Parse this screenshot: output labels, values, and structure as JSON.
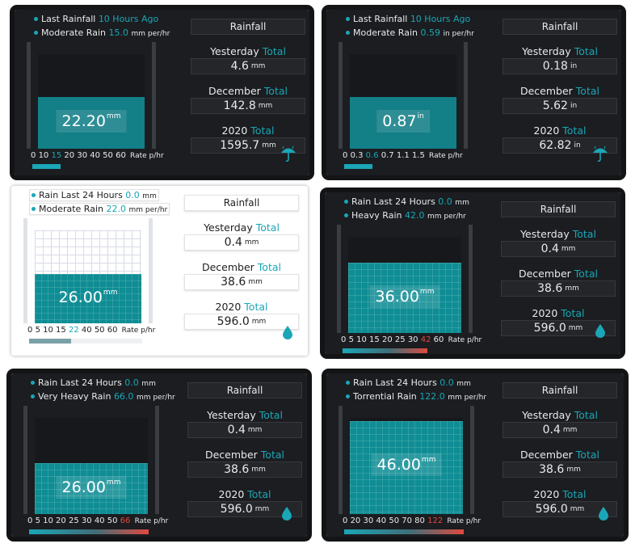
{
  "panels": [
    {
      "header": [
        {
          "pre": "Last Rainfall",
          "hl": "10 Hours Ago",
          "post": ""
        },
        {
          "pre": "Moderate Rain",
          "hl": "15.0",
          "post": "mm per/hr"
        }
      ],
      "reading_value": "22.20",
      "reading_unit": "mm",
      "scale": [
        {
          "t": "0"
        },
        {
          "t": "10"
        },
        {
          "t": "15",
          "c": "hl"
        },
        {
          "t": "20"
        },
        {
          "t": "30"
        },
        {
          "t": "40"
        },
        {
          "t": "50"
        },
        {
          "t": "60"
        }
      ],
      "rate_label": "Rate p/hr",
      "title": "Rainfall",
      "stats": [
        {
          "pre": "Yesterday",
          "post": "Total",
          "value": "4.6",
          "unit": "mm"
        },
        {
          "pre": "December",
          "post": "Total",
          "value": "142.8",
          "unit": "mm"
        },
        {
          "pre": "2020",
          "post": "Total",
          "value": "1595.7",
          "unit": "mm"
        }
      ],
      "icon": "umbrella-rain-icon",
      "fill_fraction": 0.55,
      "bar_fraction": 0.25,
      "bar_style": "teal"
    },
    {
      "header": [
        {
          "pre": "Last Rainfall",
          "hl": "10 Hours Ago",
          "post": ""
        },
        {
          "pre": "Moderate Rain",
          "hl": "0.59",
          "post": "in per/hr"
        }
      ],
      "reading_value": "0.87",
      "reading_unit": "in",
      "scale": [
        {
          "t": "0"
        },
        {
          "t": "0.3"
        },
        {
          "t": "0.6",
          "c": "hl"
        },
        {
          "t": "0.7"
        },
        {
          "t": "1.1"
        },
        {
          "t": "1.5"
        }
      ],
      "rate_label": "Rate p/hr",
      "title": "Rainfall",
      "stats": [
        {
          "pre": "Yesterday",
          "post": "Total",
          "value": "0.18",
          "unit": "in"
        },
        {
          "pre": "December",
          "post": "Total",
          "value": "5.62",
          "unit": "in"
        },
        {
          "pre": "2020",
          "post": "Total",
          "value": "62.82",
          "unit": "in"
        }
      ],
      "icon": "umbrella-rain-icon",
      "fill_fraction": 0.55,
      "bar_fraction": 0.25,
      "bar_style": "teal"
    },
    {
      "header": [
        {
          "pre": "Rain Last 24 Hours",
          "hl": "0.0",
          "post": "mm"
        },
        {
          "pre": "Moderate Rain",
          "hl": "22.0",
          "post": "mm per/hr"
        }
      ],
      "reading_value": "26.00",
      "reading_unit": "mm",
      "scale": [
        {
          "t": "0"
        },
        {
          "t": "5"
        },
        {
          "t": "10"
        },
        {
          "t": "15"
        },
        {
          "t": "22",
          "c": "hl"
        },
        {
          "t": "40"
        },
        {
          "t": "50"
        },
        {
          "t": "60"
        }
      ],
      "rate_label": "Rate p/hr",
      "title": "Rainfall",
      "stats": [
        {
          "pre": "Yesterday",
          "post": "Total",
          "value": "0.4",
          "unit": "mm"
        },
        {
          "pre": "December",
          "post": "Total",
          "value": "38.6",
          "unit": "mm"
        },
        {
          "pre": "2020",
          "post": "Total",
          "value": "596.0",
          "unit": "mm"
        }
      ],
      "icon": "water-drop-icon",
      "fill_fraction": 0.53,
      "bar_fraction": 0.37,
      "bar_style": "grey"
    },
    {
      "header": [
        {
          "pre": "Rain Last 24 Hours",
          "hl": "0.0",
          "post": "mm"
        },
        {
          "pre": "Heavy Rain",
          "hl": "42.0",
          "post": "mm per/hr"
        }
      ],
      "reading_value": "36.00",
      "reading_unit": "mm",
      "scale": [
        {
          "t": "0"
        },
        {
          "t": "5"
        },
        {
          "t": "10"
        },
        {
          "t": "15"
        },
        {
          "t": "20"
        },
        {
          "t": "25"
        },
        {
          "t": "30"
        },
        {
          "t": "42",
          "c": "red"
        },
        {
          "t": "60"
        }
      ],
      "rate_label": "Rate p/hr",
      "title": "Rainfall",
      "stats": [
        {
          "pre": "Yesterday",
          "post": "Total",
          "value": "0.4",
          "unit": "mm"
        },
        {
          "pre": "December",
          "post": "Total",
          "value": "38.6",
          "unit": "mm"
        },
        {
          "pre": "2020",
          "post": "Total",
          "value": "596.0",
          "unit": "mm"
        }
      ],
      "icon": "water-drop-icon",
      "fill_fraction": 0.73,
      "bar_fraction": 0.71,
      "bar_style": "gradient"
    },
    {
      "header": [
        {
          "pre": "Rain Last 24 Hours",
          "hl": "0.0",
          "post": "mm"
        },
        {
          "pre": "Very Heavy Rain",
          "hl": "66.0",
          "post": "mm per/hr"
        }
      ],
      "reading_value": "26.00",
      "reading_unit": "mm",
      "scale": [
        {
          "t": "0"
        },
        {
          "t": "5"
        },
        {
          "t": "10"
        },
        {
          "t": "20"
        },
        {
          "t": "25"
        },
        {
          "t": "30"
        },
        {
          "t": "40"
        },
        {
          "t": "50"
        },
        {
          "t": "66",
          "c": "red"
        }
      ],
      "rate_label": "Rate p/hr",
      "title": "Rainfall",
      "stats": [
        {
          "pre": "Yesterday",
          "post": "Total",
          "value": "0.4",
          "unit": "mm"
        },
        {
          "pre": "December",
          "post": "Total",
          "value": "38.6",
          "unit": "mm"
        },
        {
          "pre": "2020",
          "post": "Total",
          "value": "596.0",
          "unit": "mm"
        }
      ],
      "icon": "water-drop-icon",
      "fill_fraction": 0.53,
      "bar_fraction": 1.0,
      "bar_style": "gradient"
    },
    {
      "header": [
        {
          "pre": "Rain Last 24 Hours",
          "hl": "0.0",
          "post": "mm"
        },
        {
          "pre": "Torrential Rain",
          "hl": "122.0",
          "post": "mm per/hr"
        }
      ],
      "reading_value": "46.00",
      "reading_unit": "mm",
      "scale": [
        {
          "t": "0"
        },
        {
          "t": "20"
        },
        {
          "t": "30"
        },
        {
          "t": "40"
        },
        {
          "t": "50"
        },
        {
          "t": "70"
        },
        {
          "t": "80"
        },
        {
          "t": "122",
          "c": "red"
        }
      ],
      "rate_label": "Rate p/hr",
      "title": "Rainfall",
      "stats": [
        {
          "pre": "Yesterday",
          "post": "Total",
          "value": "0.4",
          "unit": "mm"
        },
        {
          "pre": "December",
          "post": "Total",
          "value": "38.6",
          "unit": "mm"
        },
        {
          "pre": "2020",
          "post": "Total",
          "value": "596.0",
          "unit": "mm"
        }
      ],
      "icon": "water-drop-icon",
      "fill_fraction": 0.97,
      "bar_fraction": 1.0,
      "bar_style": "gradient"
    }
  ],
  "colors": {
    "accent": "#1aa6b7",
    "water": "#0f8d94",
    "alert": "#e0493f",
    "panel_bg": "#1b1d20"
  }
}
